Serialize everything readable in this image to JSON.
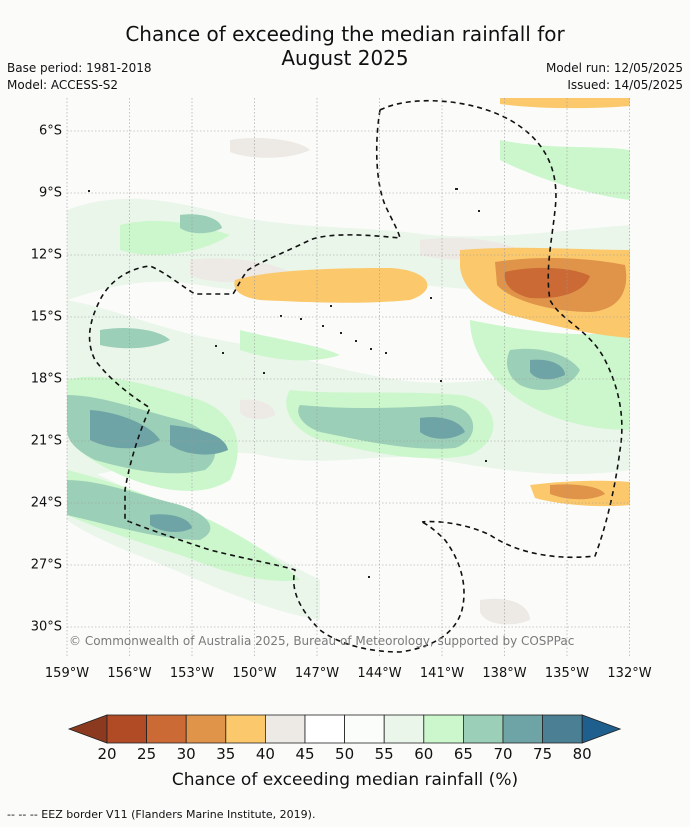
{
  "title_line1": "Chance of exceeding the median rainfall for",
  "title_line2": "August 2025",
  "base_period": "Base period: 1981-2018",
  "model": "Model: ACCESS-S2",
  "model_run": "Model run: 12/05/2025",
  "issued": "Issued: 14/05/2025",
  "copyright": "© Commonwealth of Australia 2025, Bureau of Meteorology, supported by COSPPac",
  "lat_labels": [
    "6°S",
    "9°S",
    "12°S",
    "15°S",
    "18°S",
    "21°S",
    "24°S",
    "27°S",
    "30°S"
  ],
  "lon_labels": [
    "159°W",
    "156°W",
    "153°W",
    "150°W",
    "147°W",
    "144°W",
    "141°W",
    "138°W",
    "135°W",
    "132°W"
  ],
  "colorbar": {
    "title": "Chance of exceeding median rainfall (%)",
    "ticks": [
      "20",
      "25",
      "30",
      "35",
      "40",
      "45",
      "50",
      "55",
      "60",
      "65",
      "70",
      "75",
      "80"
    ],
    "colors": [
      "#8b3a1f",
      "#b04b25",
      "#cb6a35",
      "#e0944a",
      "#fbc96c",
      "#ede9e5",
      "#ffffff",
      "#fafdfa",
      "#ebf6ea",
      "#ccf7cc",
      "#9ccfb7",
      "#6fa4a6",
      "#4a7f94",
      "#1f5f8e"
    ]
  },
  "footnote": "-- -- -- EEZ border V11 (Flanders Marine Institute, 2019)."
}
